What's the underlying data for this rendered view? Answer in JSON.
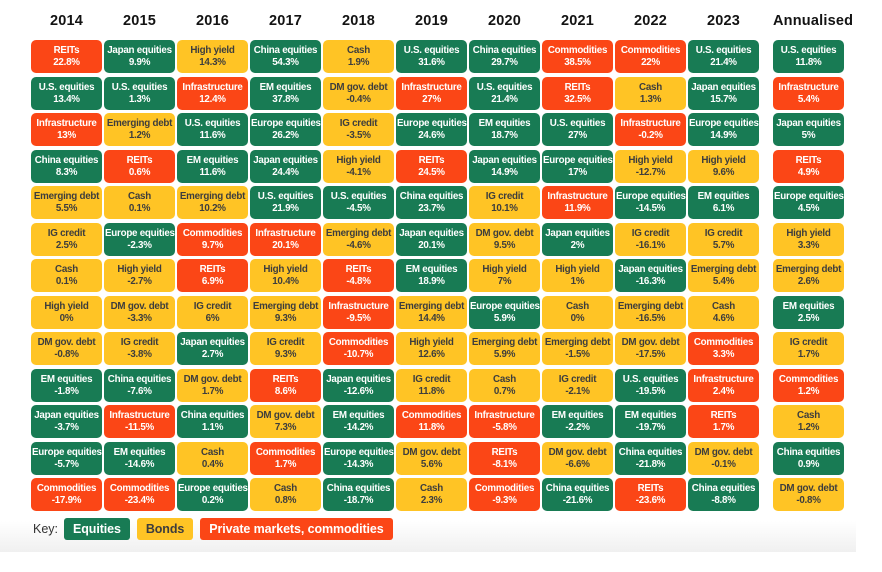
{
  "palette": {
    "page_bg": "#FFFFFF",
    "equities_green": "#187B54",
    "bonds_yellow": "#FFC425",
    "private_red": "#FB4616",
    "header_text": "#131313",
    "text_on_color": "#FFFFFF",
    "text_on_yellow": "#3D3D3D",
    "footer_band": "#F0F0F0"
  },
  "key": {
    "label": "Key:",
    "items": [
      {
        "label": "Equities",
        "category": "equities"
      },
      {
        "label": "Bonds",
        "category": "bonds"
      },
      {
        "label": "Private markets, commodities",
        "category": "private"
      }
    ]
  },
  "chart_data": {
    "type": "table",
    "categories": {
      "equities": [
        "U.S. equities",
        "Japan equities",
        "China equities",
        "EM equities",
        "Europe equities"
      ],
      "bonds": [
        "High yield",
        "Cash",
        "DM gov. debt",
        "IG credit",
        "Emerging debt"
      ],
      "private": [
        "REITs",
        "Infrastructure",
        "Commodities"
      ]
    },
    "columns": [
      {
        "label": "2014",
        "annualised": false,
        "cells": [
          [
            "REITs",
            "22.8%"
          ],
          [
            "U.S. equities",
            "13.4%"
          ],
          [
            "Infrastructure",
            "13%"
          ],
          [
            "China equities",
            "8.3%"
          ],
          [
            "Emerging debt",
            "5.5%"
          ],
          [
            "IG credit",
            "2.5%"
          ],
          [
            "Cash",
            "0.1%"
          ],
          [
            "High yield",
            "0%"
          ],
          [
            "DM gov. debt",
            "-0.8%"
          ],
          [
            "EM equities",
            "-1.8%"
          ],
          [
            "Japan equities",
            "-3.7%"
          ],
          [
            "Europe equities",
            "-5.7%"
          ],
          [
            "Commodities",
            "-17.9%"
          ]
        ]
      },
      {
        "label": "2015",
        "annualised": false,
        "cells": [
          [
            "Japan equities",
            "9.9%"
          ],
          [
            "U.S. equities",
            "1.3%"
          ],
          [
            "Emerging debt",
            "1.2%"
          ],
          [
            "REITs",
            "0.6%"
          ],
          [
            "Cash",
            "0.1%"
          ],
          [
            "Europe equities",
            "-2.3%"
          ],
          [
            "High yield",
            "-2.7%"
          ],
          [
            "DM gov. debt",
            "-3.3%"
          ],
          [
            "IG credit",
            "-3.8%"
          ],
          [
            "China equities",
            "-7.6%"
          ],
          [
            "Infrastructure",
            "-11.5%"
          ],
          [
            "EM equities",
            "-14.6%"
          ],
          [
            "Commodities",
            "-23.4%"
          ]
        ]
      },
      {
        "label": "2016",
        "annualised": false,
        "cells": [
          [
            "High yield",
            "14.3%"
          ],
          [
            "Infrastructure",
            "12.4%"
          ],
          [
            "U.S. equities",
            "11.6%"
          ],
          [
            "EM equities",
            "11.6%"
          ],
          [
            "Emerging debt",
            "10.2%"
          ],
          [
            "Commodities",
            "9.7%"
          ],
          [
            "REITs",
            "6.9%"
          ],
          [
            "IG credit",
            "6%"
          ],
          [
            "Japan equities",
            "2.7%"
          ],
          [
            "DM gov. debt",
            "1.7%"
          ],
          [
            "China equities",
            "1.1%"
          ],
          [
            "Cash",
            "0.4%"
          ],
          [
            "Europe equities",
            "0.2%"
          ]
        ]
      },
      {
        "label": "2017",
        "annualised": false,
        "cells": [
          [
            "China equities",
            "54.3%"
          ],
          [
            "EM equities",
            "37.8%"
          ],
          [
            "Europe equities",
            "26.2%"
          ],
          [
            "Japan equities",
            "24.4%"
          ],
          [
            "U.S. equities",
            "21.9%"
          ],
          [
            "Infrastructure",
            "20.1%"
          ],
          [
            "High yield",
            "10.4%"
          ],
          [
            "Emerging debt",
            "9.3%"
          ],
          [
            "IG credit",
            "9.3%"
          ],
          [
            "REITs",
            "8.6%"
          ],
          [
            "DM gov. debt",
            "7.3%"
          ],
          [
            "Commodities",
            "1.7%"
          ],
          [
            "Cash",
            "0.8%"
          ]
        ]
      },
      {
        "label": "2018",
        "annualised": false,
        "cells": [
          [
            "Cash",
            "1.9%"
          ],
          [
            "DM gov. debt",
            "-0.4%"
          ],
          [
            "IG credit",
            "-3.5%"
          ],
          [
            "High yield",
            "-4.1%"
          ],
          [
            "U.S. equities",
            "-4.5%"
          ],
          [
            "Emerging debt",
            "-4.6%"
          ],
          [
            "REITs",
            "-4.8%"
          ],
          [
            "Infrastructure",
            "-9.5%"
          ],
          [
            "Commodities",
            "-10.7%"
          ],
          [
            "Japan equities",
            "-12.6%"
          ],
          [
            "EM equities",
            "-14.2%"
          ],
          [
            "Europe equities",
            "-14.3%"
          ],
          [
            "China equities",
            "-18.7%"
          ]
        ]
      },
      {
        "label": "2019",
        "annualised": false,
        "cells": [
          [
            "U.S. equities",
            "31.6%"
          ],
          [
            "Infrastructure",
            "27%"
          ],
          [
            "Europe equities",
            "24.6%"
          ],
          [
            "REITs",
            "24.5%"
          ],
          [
            "China equities",
            "23.7%"
          ],
          [
            "Japan equities",
            "20.1%"
          ],
          [
            "EM equities",
            "18.9%"
          ],
          [
            "Emerging debt",
            "14.4%"
          ],
          [
            "High yield",
            "12.6%"
          ],
          [
            "IG credit",
            "11.8%"
          ],
          [
            "Commodities",
            "11.8%"
          ],
          [
            "DM gov. debt",
            "5.6%"
          ],
          [
            "Cash",
            "2.3%"
          ]
        ]
      },
      {
        "label": "2020",
        "annualised": false,
        "cells": [
          [
            "China equities",
            "29.7%"
          ],
          [
            "U.S. equities",
            "21.4%"
          ],
          [
            "EM equities",
            "18.7%"
          ],
          [
            "Japan equities",
            "14.9%"
          ],
          [
            "IG credit",
            "10.1%"
          ],
          [
            "DM gov. debt",
            "9.5%"
          ],
          [
            "High yield",
            "7%"
          ],
          [
            "Europe equities",
            "5.9%"
          ],
          [
            "Emerging debt",
            "5.9%"
          ],
          [
            "Cash",
            "0.7%"
          ],
          [
            "Infrastructure",
            "-5.8%"
          ],
          [
            "REITs",
            "-8.1%"
          ],
          [
            "Commodities",
            "-9.3%"
          ]
        ]
      },
      {
        "label": "2021",
        "annualised": false,
        "cells": [
          [
            "Commodities",
            "38.5%"
          ],
          [
            "REITs",
            "32.5%"
          ],
          [
            "U.S. equities",
            "27%"
          ],
          [
            "Europe equities",
            "17%"
          ],
          [
            "Infrastructure",
            "11.9%"
          ],
          [
            "Japan equities",
            "2%"
          ],
          [
            "High yield",
            "1%"
          ],
          [
            "Cash",
            "0%"
          ],
          [
            "Emerging debt",
            "-1.5%"
          ],
          [
            "IG credit",
            "-2.1%"
          ],
          [
            "EM equities",
            "-2.2%"
          ],
          [
            "DM gov. debt",
            "-6.6%"
          ],
          [
            "China equities",
            "-21.6%"
          ]
        ]
      },
      {
        "label": "2022",
        "annualised": false,
        "cells": [
          [
            "Commodities",
            "22%"
          ],
          [
            "Cash",
            "1.3%"
          ],
          [
            "Infrastructure",
            "-0.2%"
          ],
          [
            "High yield",
            "-12.7%"
          ],
          [
            "Europe equities",
            "-14.5%"
          ],
          [
            "IG credit",
            "-16.1%"
          ],
          [
            "Japan equities",
            "-16.3%"
          ],
          [
            "Emerging debt",
            "-16.5%"
          ],
          [
            "DM gov. debt",
            "-17.5%"
          ],
          [
            "U.S. equities",
            "-19.5%"
          ],
          [
            "EM equities",
            "-19.7%"
          ],
          [
            "China equities",
            "-21.8%"
          ],
          [
            "REITs",
            "-23.6%"
          ]
        ]
      },
      {
        "label": "2023",
        "annualised": false,
        "cells": [
          [
            "U.S. equities",
            "21.4%"
          ],
          [
            "Japan equities",
            "15.7%"
          ],
          [
            "Europe equities",
            "14.9%"
          ],
          [
            "High yield",
            "9.6%"
          ],
          [
            "EM equities",
            "6.1%"
          ],
          [
            "IG credit",
            "5.7%"
          ],
          [
            "Emerging debt",
            "5.4%"
          ],
          [
            "Cash",
            "4.6%"
          ],
          [
            "Commodities",
            "3.3%"
          ],
          [
            "Infrastructure",
            "2.4%"
          ],
          [
            "REITs",
            "1.7%"
          ],
          [
            "DM gov. debt",
            "-0.1%"
          ],
          [
            "China equities",
            "-8.8%"
          ]
        ]
      },
      {
        "label": "Annualised",
        "annualised": true,
        "cells": [
          [
            "U.S. equities",
            "11.8%"
          ],
          [
            "Infrastructure",
            "5.4%"
          ],
          [
            "Japan equities",
            "5%"
          ],
          [
            "REITs",
            "4.9%"
          ],
          [
            "Europe equities",
            "4.5%"
          ],
          [
            "High yield",
            "3.3%"
          ],
          [
            "Emerging debt",
            "2.6%"
          ],
          [
            "EM equities",
            "2.5%"
          ],
          [
            "IG credit",
            "1.7%"
          ],
          [
            "Commodities",
            "1.2%"
          ],
          [
            "Cash",
            "1.2%"
          ],
          [
            "China equities",
            "0.9%"
          ],
          [
            "DM gov. debt",
            "-0.8%"
          ]
        ]
      }
    ]
  }
}
